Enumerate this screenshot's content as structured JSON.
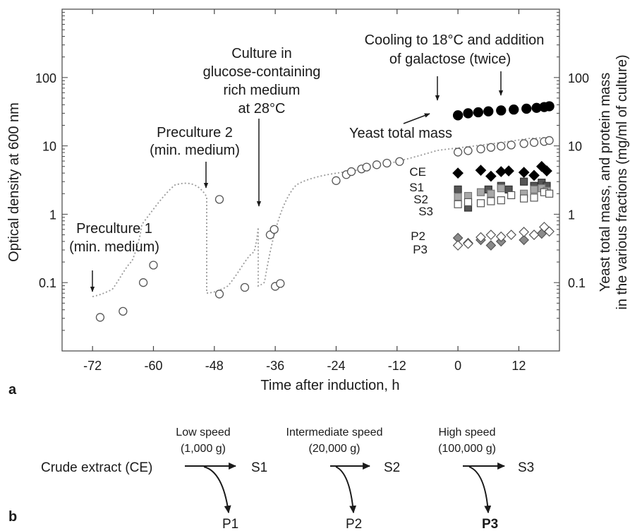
{
  "panel_a_label": "a",
  "panel_b_label": "b",
  "chart_data": {
    "type": "scatter",
    "xlabel": "Time after induction, h",
    "ylabel_left": "Optical density at 600 nm",
    "ylabel_right_line1": "Yeast total mass, and protein mass",
    "ylabel_right_line2": "in the various fractions (mg/ml of culture)",
    "x_ticks": [
      -72,
      -60,
      -48,
      -36,
      -24,
      -12,
      0,
      12
    ],
    "xlim": [
      -78,
      20
    ],
    "y_scale": "log",
    "ylim": [
      0.01,
      1000
    ],
    "y_ticks": [
      0.1,
      1,
      10,
      100
    ],
    "y_tick_labels": [
      "0.1",
      "1",
      "10",
      "100"
    ],
    "grid": false,
    "series": [
      {
        "key": "od600",
        "axis": "left",
        "marker": "open-circle",
        "points": [
          [
            -70.5,
            0.031
          ],
          [
            -66,
            0.038
          ],
          [
            -62,
            0.1
          ],
          [
            -60,
            0.18
          ],
          [
            -47,
            1.65
          ],
          [
            -47,
            0.068
          ],
          [
            -42,
            0.085
          ],
          [
            -37,
            0.5
          ],
          [
            -36.2,
            0.6
          ],
          [
            -36,
            0.088
          ],
          [
            -35,
            0.097
          ],
          [
            -24,
            3.1
          ],
          [
            -22,
            3.8
          ],
          [
            -21,
            4.2
          ],
          [
            -19,
            4.6
          ],
          [
            -18,
            4.9
          ],
          [
            -16,
            5.3
          ],
          [
            -14,
            5.6
          ],
          [
            -11.5,
            5.9
          ],
          [
            0,
            8.1
          ],
          [
            2,
            8.5
          ],
          [
            4.5,
            9.0
          ],
          [
            6.5,
            9.5
          ],
          [
            8.5,
            9.9
          ],
          [
            10.5,
            10.3
          ],
          [
            13,
            10.8
          ],
          [
            15,
            11.2
          ],
          [
            17,
            11.6
          ],
          [
            18,
            12.0
          ]
        ]
      },
      {
        "key": "total_mass",
        "name": "Yeast total mass",
        "axis": "right",
        "marker": "filled-circle",
        "points": [
          [
            0,
            28
          ],
          [
            2,
            30
          ],
          [
            4,
            31
          ],
          [
            6,
            32
          ],
          [
            8.5,
            33
          ],
          [
            11,
            34
          ],
          [
            13.5,
            35
          ],
          [
            15.5,
            36
          ],
          [
            17,
            37
          ],
          [
            18,
            38
          ]
        ]
      },
      {
        "key": "ce",
        "name": "CE",
        "axis": "right",
        "marker": "filled-diamond",
        "points": [
          [
            0,
            4.0
          ],
          [
            4.5,
            4.4
          ],
          [
            6.5,
            3.6
          ],
          [
            8.5,
            4.2
          ],
          [
            10,
            4.3
          ],
          [
            13,
            4.1
          ],
          [
            15,
            3.7
          ],
          [
            16.5,
            5.0
          ],
          [
            17.5,
            4.3
          ]
        ]
      },
      {
        "key": "s1",
        "name": "S1",
        "axis": "right",
        "marker": "dark-gray-square",
        "points": [
          [
            0,
            2.3
          ],
          [
            2,
            1.25
          ],
          [
            6,
            2.3
          ],
          [
            8.5,
            2.6
          ],
          [
            10,
            2.3
          ],
          [
            13,
            3.0
          ],
          [
            15,
            2.6
          ],
          [
            16.5,
            2.9
          ],
          [
            17.5,
            2.6
          ]
        ]
      },
      {
        "key": "s2",
        "name": "S2",
        "axis": "right",
        "marker": "light-gray-square",
        "points": [
          [
            0,
            1.8
          ],
          [
            2,
            1.85
          ],
          [
            4.5,
            2.1
          ],
          [
            6.5,
            2.0
          ],
          [
            8.5,
            2.4
          ],
          [
            13,
            2.0
          ],
          [
            15,
            2.3
          ],
          [
            16.5,
            2.4
          ],
          [
            17.5,
            2.2
          ]
        ]
      },
      {
        "key": "s3",
        "name": "S3",
        "axis": "right",
        "marker": "open-square",
        "points": [
          [
            0,
            1.4
          ],
          [
            2,
            1.5
          ],
          [
            4.5,
            1.45
          ],
          [
            6.5,
            1.55
          ],
          [
            8.5,
            1.6
          ],
          [
            10.5,
            1.9
          ],
          [
            13,
            1.7
          ],
          [
            15,
            1.75
          ],
          [
            17,
            2.1
          ],
          [
            18,
            2.0
          ]
        ]
      },
      {
        "key": "p2",
        "name": "P2",
        "axis": "right",
        "marker": "gray-diamond",
        "points": [
          [
            0,
            0.45
          ],
          [
            2,
            0.38
          ],
          [
            4.5,
            0.42
          ],
          [
            6.5,
            0.35
          ],
          [
            8.5,
            0.4
          ],
          [
            13,
            0.42
          ],
          [
            15,
            0.5
          ],
          [
            16.5,
            0.52
          ]
        ]
      },
      {
        "key": "p3",
        "name": "P3",
        "axis": "right",
        "marker": "open-diamond",
        "points": [
          [
            0,
            0.35
          ],
          [
            2,
            0.37
          ],
          [
            4.5,
            0.46
          ],
          [
            6.5,
            0.5
          ],
          [
            8.5,
            0.47
          ],
          [
            10.5,
            0.5
          ],
          [
            13,
            0.55
          ],
          [
            15,
            0.5
          ],
          [
            17,
            0.65
          ],
          [
            18,
            0.56
          ]
        ]
      }
    ],
    "annotations": {
      "preculture1": [
        "Preculture 1",
        "(min. medium)"
      ],
      "preculture2": [
        "Preculture 2",
        "(min. medium)"
      ],
      "culture": [
        "Culture in",
        "glucose-containing",
        "rich medium",
        "at 28°C"
      ],
      "cooling": [
        "Cooling to 18°C and addition",
        "of galactose (twice)"
      ],
      "yeast_total_mass": "Yeast total mass"
    }
  },
  "scheme": {
    "crude_extract": "Crude extract (CE)",
    "supernatants": [
      "S1",
      "S2",
      "S3"
    ],
    "pellets": [
      "P1",
      "P2",
      "P3"
    ],
    "steps": [
      {
        "speed": "Low speed",
        "force": "(1,000 g)"
      },
      {
        "speed": "Intermediate speed",
        "force": "(20,000 g)"
      },
      {
        "speed": "High speed",
        "force": "(100,000 g)"
      }
    ]
  }
}
